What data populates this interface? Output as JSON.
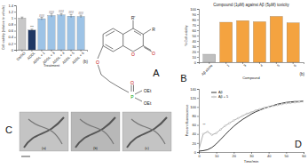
{
  "chart_data": [
    {
      "type": "bar",
      "panel_label": "(b)",
      "y_label": "Cell viability (relative to vehicle)",
      "x_label": "Treatment",
      "categories": [
        "DMSO",
        "ADDL",
        "ADDL + 1",
        "ADDL + 3",
        "ADDL + 4",
        "ADDL + 5",
        "ADDL + 6"
      ],
      "values": [
        1.0,
        0.62,
        0.98,
        1.08,
        1.1,
        1.06,
        1.05
      ],
      "errors": [
        0.03,
        0.03,
        0.04,
        0.05,
        0.04,
        0.05,
        0.04
      ],
      "colors": [
        "#c8c8c8",
        "#1f3864",
        "#9dc3e6",
        "#9dc3e6",
        "#9dc3e6",
        "#9dc3e6",
        "#9dc3e6"
      ],
      "annotations": [
        {
          "index": 1,
          "text": "***"
        },
        {
          "index": 2,
          "text": "###"
        },
        {
          "index": 3,
          "text": "###"
        },
        {
          "index": 4,
          "text": "###"
        },
        {
          "index": 5,
          "text": "###"
        },
        {
          "index": 6,
          "text": "###"
        }
      ],
      "ylim": [
        0,
        1.4
      ],
      "yticks": [
        0,
        0.2,
        0.4,
        0.6,
        0.8,
        1,
        1.2,
        1.4
      ]
    },
    {
      "type": "bar",
      "title": "Compound (1µM) against Aβ (5µM) toxicity",
      "panel_label": "(b)",
      "y_label": "% Cell viability",
      "x_label": "Compound",
      "categories": [
        "Aβ alone",
        "1",
        "3",
        "4",
        "5",
        "6"
      ],
      "values": [
        15,
        75,
        78,
        76,
        86,
        74
      ],
      "colors": [
        "#bfbfbf",
        "#f4a340",
        "#f4a340",
        "#f4a340",
        "#f4a340",
        "#f4a340"
      ],
      "ylim": [
        0,
        100
      ],
      "yticks": [
        0,
        10,
        20,
        30,
        40,
        50,
        60,
        70,
        80,
        90,
        100
      ]
    },
    {
      "type": "line",
      "x_label": "Time/min",
      "y_label": "Percent fluorescence",
      "x": [
        0,
        2.5,
        5,
        7.5,
        10,
        12.5,
        15,
        17.5,
        20,
        22.5,
        25,
        27.5,
        30,
        32.5,
        35,
        37.5,
        40,
        42.5,
        45,
        47.5,
        50,
        52.5,
        55,
        57.5,
        60
      ],
      "series": [
        {
          "name": "Aβ",
          "color": "#000000",
          "marker": "none",
          "values": [
            2,
            3,
            5,
            10,
            18,
            28,
            38,
            48,
            57,
            65,
            72,
            78,
            84,
            89,
            93,
            97,
            100,
            103,
            106,
            108,
            110,
            111,
            112,
            112,
            113
          ]
        },
        {
          "name": "Aβ + 5",
          "color": "#999999",
          "marker": "circle",
          "values": [
            5,
            40,
            45,
            38,
            42,
            50,
            58,
            64,
            70,
            75,
            80,
            85,
            88,
            92,
            95,
            98,
            100,
            102,
            104,
            106,
            108,
            109,
            110,
            111,
            112
          ]
        }
      ],
      "annotations": [
        {
          "x": 3,
          "y": 58,
          "text": "**"
        }
      ],
      "legend": "top-left",
      "xlim": [
        0,
        60
      ],
      "xticks": [
        0,
        10,
        20,
        30,
        40,
        50,
        60
      ],
      "ylim": [
        0,
        140
      ],
      "yticks": [
        0,
        20,
        40,
        60,
        80,
        100,
        120,
        140
      ]
    }
  ],
  "figure": {
    "panel_letters": [
      "A",
      "B",
      "C",
      "D"
    ],
    "structure": {
      "labels": [
        "R'",
        "R",
        "O",
        "O",
        "O",
        "P",
        "O",
        "OEt",
        "OEt"
      ]
    },
    "micrographs": {
      "labels": [
        "(a)",
        "(b)",
        "(c)"
      ]
    }
  }
}
